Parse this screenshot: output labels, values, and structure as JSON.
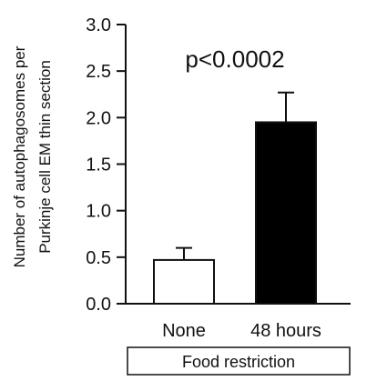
{
  "chart_data": {
    "type": "bar",
    "categories": [
      "None",
      "48 hours"
    ],
    "values": [
      0.47,
      1.95
    ],
    "errors": [
      0.13,
      0.32
    ],
    "bar_colors": [
      "#ffffff",
      "#000000"
    ],
    "ylabel": "Number of autophagosomes per\nPurkinje cell EM thin section",
    "y_ticks": [
      "0.0",
      "0.5",
      "1.0",
      "1.5",
      "2.0",
      "2.5",
      "3.0"
    ],
    "ylim": [
      0,
      3
    ],
    "annotation": "p<0.0002",
    "group_label": "Food restriction"
  }
}
